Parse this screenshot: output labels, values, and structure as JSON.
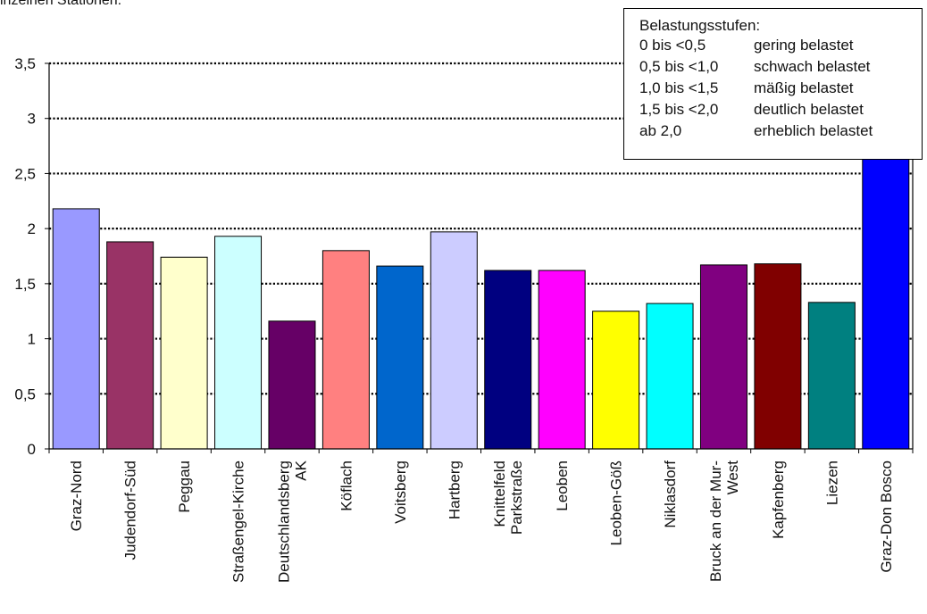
{
  "caption": "inzelnen Stationen:",
  "legend": {
    "title": "Belastungsstufen:",
    "rows": [
      {
        "range": "0 bis <0,5",
        "label": "gering belastet"
      },
      {
        "range": "0,5 bis <1,0",
        "label": "schwach belastet"
      },
      {
        "range": "1,0 bis <1,5",
        "label": "mäßig belastet"
      },
      {
        "range": "1,5 bis <2,0",
        "label": "deutlich belastet"
      },
      {
        "range": "ab 2,0",
        "label": "erheblich belastet"
      }
    ]
  },
  "chart_data": {
    "type": "bar",
    "ylim": [
      0,
      3.5
    ],
    "yticks": [
      "0",
      "0,5",
      "1",
      "1,5",
      "2",
      "2,5",
      "3",
      "3,5"
    ],
    "grid": "dotted horizontal",
    "categories": [
      "Graz-Nord",
      "Judendorf-Süd",
      "Peggau",
      "Straßengel-Kirche",
      "Deutschlandsberg AK",
      "Köflach",
      "Voitsberg",
      "Hartberg",
      "Knittelfeld Parkstraße",
      "Leoben",
      "Leoben-Göß",
      "Niklasdorf",
      "Bruck an der Mur-West",
      "Kapfenberg",
      "Liezen",
      "Graz-Don Bosco"
    ],
    "category_lines": [
      [
        "Graz-Nord"
      ],
      [
        "Judendorf-Süd"
      ],
      [
        "Peggau"
      ],
      [
        "Straßengel-Kirche"
      ],
      [
        "Deutschlandsberg",
        "AK"
      ],
      [
        "Köflach"
      ],
      [
        "Voitsberg"
      ],
      [
        "Hartberg"
      ],
      [
        "Knittelfeld",
        "Parkstraße"
      ],
      [
        "Leoben"
      ],
      [
        "Leoben-Göß"
      ],
      [
        "Niklasdorf"
      ],
      [
        "Bruck an der Mur-",
        "West"
      ],
      [
        "Kapfenberg"
      ],
      [
        "Liezen"
      ],
      [
        "Graz-Don Bosco"
      ]
    ],
    "values": [
      2.18,
      1.88,
      1.74,
      1.93,
      1.16,
      1.8,
      1.66,
      1.97,
      1.62,
      1.62,
      1.25,
      1.32,
      1.67,
      1.68,
      1.33,
      3.6
    ],
    "colors": [
      "#9999FF",
      "#993366",
      "#FFFFCC",
      "#CCFFFF",
      "#660066",
      "#FF8080",
      "#0066CC",
      "#CCCCFF",
      "#000080",
      "#FF00FF",
      "#FFFF00",
      "#00FFFF",
      "#800080",
      "#800000",
      "#008080",
      "#0000FF"
    ]
  }
}
